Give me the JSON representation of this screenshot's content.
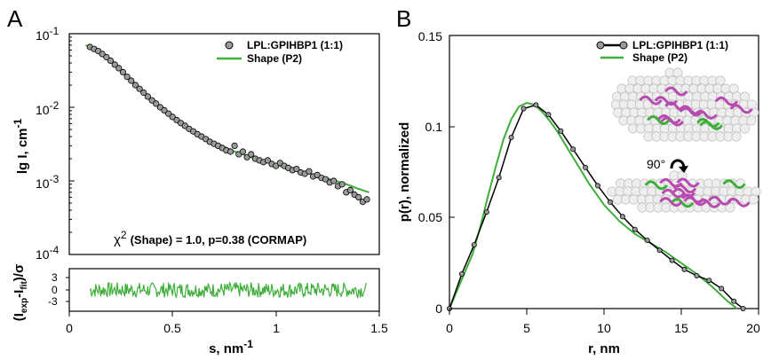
{
  "panels": {
    "a_letter": "A",
    "b_letter": "B"
  },
  "colors": {
    "fit_line": "#3fae3a",
    "marker_fill": "#9a9a9a",
    "black": "#000000"
  },
  "chart_data": [
    {
      "type": "scatter",
      "panel": "A",
      "xlabel": "s, nm",
      "xlabel_sup": "-1",
      "ylabel": "lg I, cm",
      "ylabel_sup": "-1",
      "xlim": [
        0,
        1.5
      ],
      "ylim": [
        0.0001,
        0.1
      ],
      "yscale": "log",
      "x_ticks": [
        "0",
        "0.5",
        "1",
        "1.5"
      ],
      "y_ticks": [
        "10",
        "10",
        "10",
        "10"
      ],
      "y_tick_sups": [
        "-1",
        "-2",
        "-3",
        "-4"
      ],
      "legend": [
        "LPL:GPIHBP1 (1:1)",
        "Shape (P2)"
      ],
      "legend_position": "top-right",
      "annotation": {
        "chi": "χ",
        "chi_sup": "2",
        "text": "(Shape)  = 1.0,  p=0.38 (CORMAP)"
      },
      "series": [
        {
          "name": "LPL:GPIHBP1 (1:1)",
          "kind": "points",
          "x": [
            0.1,
            0.12,
            0.14,
            0.16,
            0.18,
            0.2,
            0.22,
            0.24,
            0.26,
            0.28,
            0.3,
            0.32,
            0.34,
            0.36,
            0.38,
            0.4,
            0.42,
            0.44,
            0.46,
            0.48,
            0.5,
            0.52,
            0.54,
            0.56,
            0.58,
            0.6,
            0.62,
            0.64,
            0.66,
            0.68,
            0.7,
            0.72,
            0.74,
            0.76,
            0.78,
            0.8,
            0.82,
            0.84,
            0.86,
            0.88,
            0.9,
            0.92,
            0.94,
            0.96,
            0.98,
            1.0,
            1.02,
            1.04,
            1.06,
            1.08,
            1.1,
            1.12,
            1.14,
            1.16,
            1.18,
            1.2,
            1.22,
            1.24,
            1.26,
            1.28,
            1.3,
            1.32,
            1.34,
            1.36,
            1.38,
            1.4,
            1.42,
            1.44
          ],
          "y": [
            0.066,
            0.062,
            0.058,
            0.053,
            0.048,
            0.043,
            0.038,
            0.034,
            0.03,
            0.026,
            0.023,
            0.02,
            0.0178,
            0.0158,
            0.014,
            0.0124,
            0.0112,
            0.01,
            0.0091,
            0.0082,
            0.0074,
            0.0067,
            0.0061,
            0.0056,
            0.0051,
            0.0047,
            0.0043,
            0.004,
            0.0037,
            0.0034,
            0.0032,
            0.003,
            0.0028,
            0.0026,
            0.0025,
            0.003,
            0.0023,
            0.0025,
            0.0021,
            0.0023,
            0.002,
            0.0019,
            0.0018,
            0.0019,
            0.0017,
            0.0016,
            0.00175,
            0.0016,
            0.0015,
            0.0014,
            0.00145,
            0.0013,
            0.00125,
            0.00135,
            0.00115,
            0.0012,
            0.0011,
            0.00105,
            0.00095,
            0.001,
            0.00085,
            0.0009,
            0.0007,
            0.00075,
            0.00065,
            0.0006,
            0.00052,
            0.00056
          ]
        },
        {
          "name": "Shape (P2)",
          "kind": "line",
          "x": [
            0.08,
            0.1,
            0.15,
            0.2,
            0.25,
            0.3,
            0.35,
            0.4,
            0.45,
            0.5,
            0.55,
            0.6,
            0.65,
            0.7,
            0.75,
            0.8,
            0.85,
            0.9,
            0.95,
            1.0,
            1.05,
            1.1,
            1.15,
            1.2,
            1.25,
            1.3,
            1.35,
            1.4,
            1.45
          ],
          "y": [
            0.07,
            0.066,
            0.055,
            0.043,
            0.032,
            0.023,
            0.0168,
            0.0124,
            0.0095,
            0.0074,
            0.0058,
            0.0047,
            0.0039,
            0.0033,
            0.0029,
            0.0025,
            0.00225,
            0.002,
            0.00182,
            0.00165,
            0.00152,
            0.0014,
            0.00128,
            0.00118,
            0.00108,
            0.00098,
            0.00088,
            0.00078,
            0.0007
          ]
        }
      ]
    },
    {
      "type": "line",
      "panel": "A-residuals",
      "ylabel": "(I",
      "ylabel_sub1": "exp",
      "ylabel_mid": "-I",
      "ylabel_sub2": "fit",
      "ylabel_end": ")/σ",
      "xlim": [
        0,
        1.5
      ],
      "ylim": [
        -4.5,
        4.5
      ],
      "y_ticks": [
        "3",
        "0",
        "-3"
      ],
      "series": [
        {
          "name": "residuals",
          "x_start": 0.1,
          "x_end": 1.44,
          "amplitude": 1.6
        }
      ]
    },
    {
      "type": "line",
      "panel": "B",
      "xlabel": "r, nm",
      "ylabel": "p(r), normalized",
      "xlim": [
        0,
        20
      ],
      "ylim": [
        0,
        0.15
      ],
      "x_ticks": [
        "0",
        "5",
        "10",
        "15",
        "20"
      ],
      "y_ticks": [
        "0",
        "0.05",
        "0.1",
        "0.15"
      ],
      "legend": [
        "LPL:GPIHBP1 (1:1)",
        "Shape (P2)"
      ],
      "legend_position": "top-right",
      "inset_label": "90°",
      "series": [
        {
          "name": "LPL:GPIHBP1 (1:1)",
          "kind": "line+points",
          "x": [
            0,
            0.8,
            1.6,
            2.4,
            3.2,
            4.0,
            4.8,
            5.6,
            6.4,
            7.2,
            8.0,
            8.8,
            9.6,
            10.4,
            11.2,
            12.0,
            12.8,
            13.6,
            14.4,
            15.2,
            16.0,
            16.8,
            17.6,
            18.4,
            19.0
          ],
          "y": [
            0,
            0.019,
            0.035,
            0.053,
            0.072,
            0.094,
            0.1098,
            0.1118,
            0.1065,
            0.0975,
            0.0875,
            0.0775,
            0.0675,
            0.0585,
            0.0505,
            0.0435,
            0.0375,
            0.032,
            0.0265,
            0.0215,
            0.018,
            0.0155,
            0.011,
            0.004,
            0.0
          ]
        },
        {
          "name": "Shape (P2)",
          "kind": "line",
          "x": [
            0,
            0.5,
            1,
            1.5,
            2,
            2.5,
            3,
            3.5,
            4,
            4.5,
            5,
            5.5,
            6,
            6.5,
            7,
            7.5,
            8,
            8.5,
            9,
            9.5,
            10,
            11,
            12,
            13,
            14,
            15,
            16,
            17,
            18,
            18.6
          ],
          "y": [
            0,
            0.01,
            0.02,
            0.03,
            0.045,
            0.062,
            0.078,
            0.093,
            0.104,
            0.111,
            0.113,
            0.112,
            0.108,
            0.103,
            0.097,
            0.09,
            0.083,
            0.076,
            0.069,
            0.063,
            0.057,
            0.048,
            0.041,
            0.036,
            0.031,
            0.025,
            0.019,
            0.012,
            0.004,
            0.0
          ]
        }
      ]
    }
  ]
}
